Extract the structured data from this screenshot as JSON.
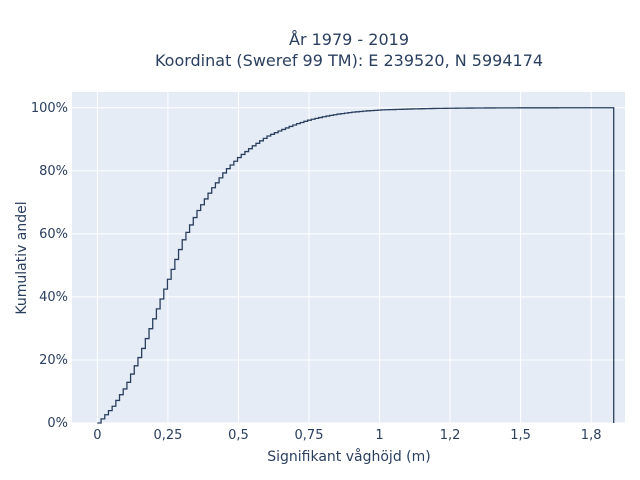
{
  "chart_data": {
    "type": "line",
    "title_lines": [
      "År 1979 - 2019",
      "Koordinat (Sweref 99 TM): E 239520, N 5994174"
    ],
    "xlabel": "Signifikant våghöjd (m)",
    "ylabel": "Kumulativ andel",
    "xlim": [
      -0.09,
      1.87
    ],
    "ylim": [
      0,
      1.05
    ],
    "x_ticks": [
      0,
      0.25,
      0.5,
      0.75,
      1,
      1.25,
      1.5,
      1.75
    ],
    "x_tick_labels": [
      "0",
      "0,25",
      "0,5",
      "0,75",
      "1",
      "1,2",
      "1,5",
      "1,8"
    ],
    "y_ticks": [
      0,
      0.2,
      0.4,
      0.6,
      0.8,
      1
    ],
    "y_tick_labels": [
      "0%",
      "20%",
      "40%",
      "60%",
      "80%",
      "100%"
    ],
    "grid": true,
    "line_shape": "step",
    "line_color": "#2a3f5f",
    "plot_bg": "#e5ecf6",
    "series": [
      {
        "x": [
          0,
          0.05,
          0.1,
          0.15,
          0.2,
          0.25,
          0.3,
          0.35,
          0.4,
          0.45,
          0.5,
          0.55,
          0.6,
          0.65,
          0.7,
          0.75,
          0.8,
          0.85,
          0.9,
          0.95,
          1.0,
          1.1,
          1.2,
          1.3,
          1.4,
          1.5,
          1.6,
          1.7,
          1.8,
          1.83
        ],
        "y": [
          0,
          0.05,
          0.12,
          0.22,
          0.34,
          0.46,
          0.58,
          0.67,
          0.74,
          0.8,
          0.845,
          0.88,
          0.91,
          0.93,
          0.948,
          0.962,
          0.972,
          0.98,
          0.986,
          0.99,
          0.993,
          0.996,
          0.998,
          0.999,
          0.9995,
          0.9998,
          0.9999,
          1.0,
          1.0,
          1.0
        ]
      }
    ]
  }
}
